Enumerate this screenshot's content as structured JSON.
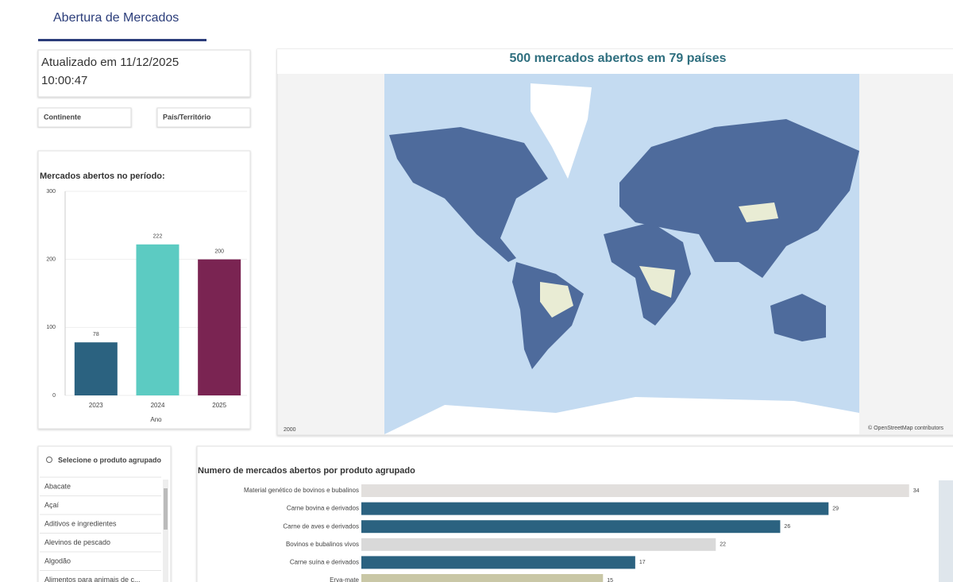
{
  "header": {
    "title": "Abertura de Mercados"
  },
  "updated": {
    "line1": "Atualizado em 11/12/2025",
    "line2": "10:00:47"
  },
  "filters": [
    "Continente",
    "País/Território"
  ],
  "search": {
    "placeholder": "Selecione o produto agrupado",
    "items": [
      "Abacate",
      "Açaí",
      "Aditivos e ingredientes",
      "Alevinos de pescado",
      "Algodão",
      "Alimentos para animais de c..."
    ]
  },
  "map": {
    "title": "500 mercados abertos em 79 países",
    "scale": "2000",
    "attribution": "© OpenStreetMap contributors"
  },
  "chart_data": [
    {
      "type": "bar",
      "title": "Mercados abertos no período:",
      "x_label": "Ano",
      "categories": [
        "2023",
        "2024",
        "2025"
      ],
      "values": [
        78,
        222,
        200
      ],
      "colors": [
        "#2b6280",
        "#5ccbc2",
        "#7a2452"
      ],
      "ylim": [
        0,
        300
      ],
      "yticks": [
        0,
        100,
        200,
        300
      ],
      "grid": true
    },
    {
      "type": "hbar",
      "title": "Numero de mercados abertos por produto agrupado",
      "categories": [
        "Material genético de bovinos e bubalinos",
        "Carne bovina e derivados",
        "Carne de aves e derivados",
        "Bovinos e bubalinos vivos",
        "Carne suína e derivados",
        "Erva-mate"
      ],
      "values": [
        34,
        29,
        26,
        22,
        17,
        15
      ],
      "colors": [
        "#e2dfdd",
        "#2b6280",
        "#2b6280",
        "#d9d9d9",
        "#2b6280",
        "#c9c7a6"
      ],
      "xlim": [
        0,
        35
      ]
    }
  ]
}
